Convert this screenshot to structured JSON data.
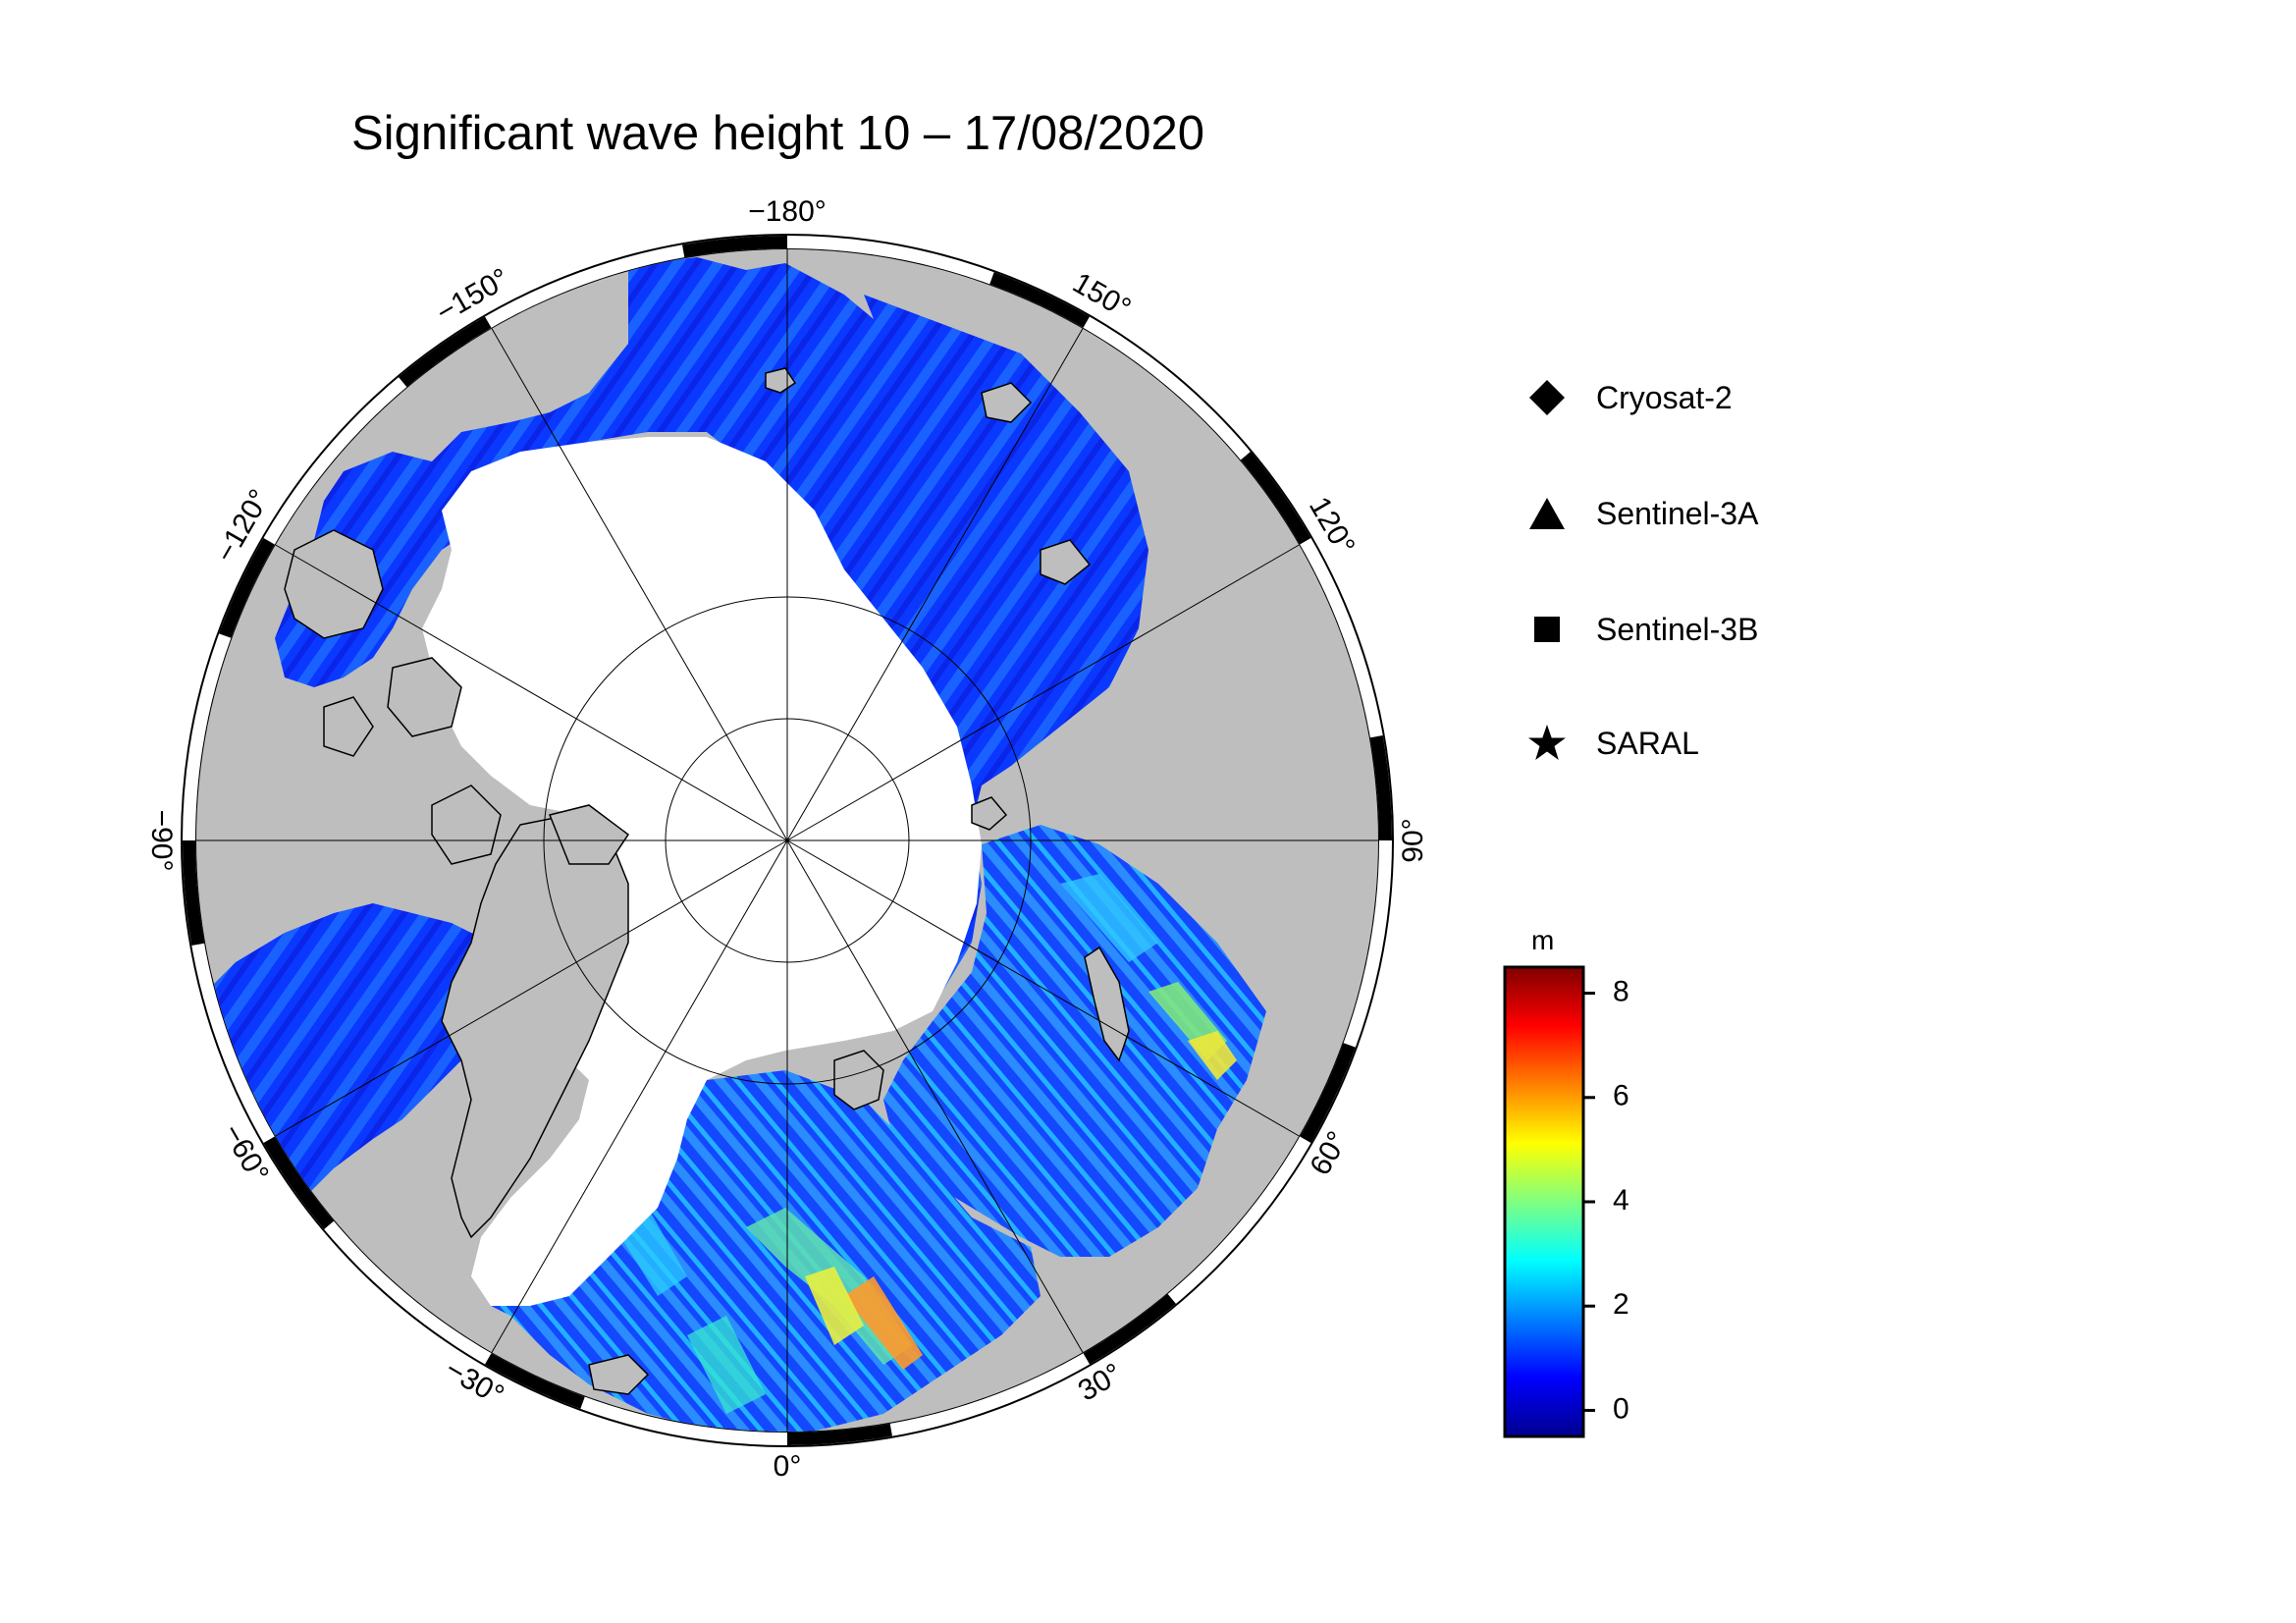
{
  "title": "Significant wave height 10 – 17/08/2020",
  "map": {
    "projection": "north-polar-stereographic",
    "land_color": "#bebebe",
    "ice_color": "#ffffff",
    "ocean_track_colors": [
      "#0a2dff",
      "#1f5cff",
      "#2f8dff",
      "#28c8ff",
      "#3fe8c8",
      "#a8f04a",
      "#f6e21e",
      "#ff8f1a"
    ],
    "longitude_labels": [
      {
        "lon": -180,
        "text": "−180°"
      },
      {
        "lon": 150,
        "text": "150°"
      },
      {
        "lon": 120,
        "text": "120°"
      },
      {
        "lon": 90,
        "text": "90°"
      },
      {
        "lon": 60,
        "text": "60°"
      },
      {
        "lon": 30,
        "text": "30°"
      },
      {
        "lon": 0,
        "text": "0°"
      },
      {
        "lon": -30,
        "text": "−30°"
      },
      {
        "lon": -60,
        "text": "−60°"
      },
      {
        "lon": -90,
        "text": "−90°"
      },
      {
        "lon": -120,
        "text": "−120°"
      },
      {
        "lon": -150,
        "text": "−150°"
      }
    ]
  },
  "legend": {
    "items": [
      {
        "marker": "diamond",
        "label": "Cryosat-2"
      },
      {
        "marker": "triangle",
        "label": "Sentinel-3A"
      },
      {
        "marker": "square",
        "label": "Sentinel-3B"
      },
      {
        "marker": "star",
        "label": "SARAL"
      }
    ]
  },
  "colorbar": {
    "unit": "m",
    "min": -0.5,
    "max": 8.5,
    "ticks": [
      {
        "value": 0,
        "label": "0"
      },
      {
        "value": 2,
        "label": "2"
      },
      {
        "value": 4,
        "label": "4"
      },
      {
        "value": 6,
        "label": "6"
      },
      {
        "value": 8,
        "label": "8"
      }
    ],
    "colors": [
      "#00008f",
      "#0000ff",
      "#0080ff",
      "#00ffff",
      "#80ff80",
      "#ffff00",
      "#ff8000",
      "#ff0000",
      "#800000"
    ]
  }
}
